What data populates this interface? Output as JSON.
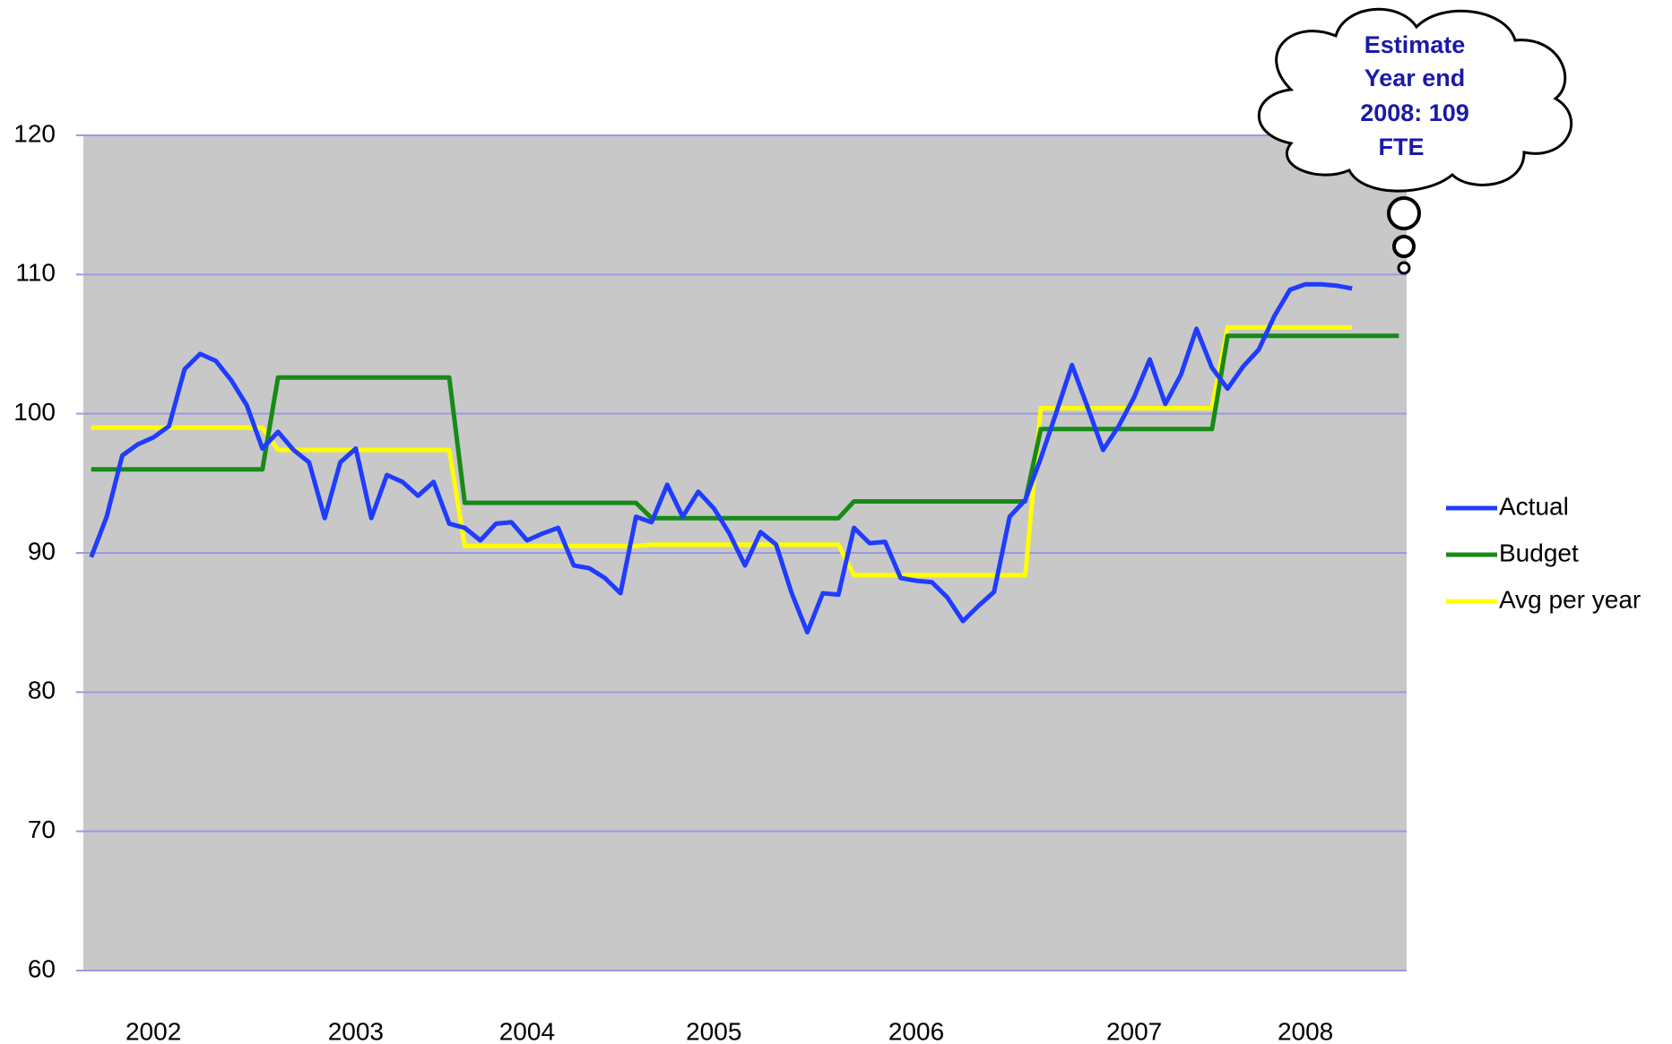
{
  "chart_data": {
    "type": "line",
    "categories": [
      null,
      null,
      null,
      null,
      "2002",
      null,
      null,
      null,
      null,
      null,
      null,
      null,
      null,
      null,
      null,
      null,
      null,
      "2003",
      null,
      null,
      null,
      null,
      null,
      null,
      null,
      null,
      null,
      null,
      "2004",
      null,
      null,
      null,
      null,
      null,
      null,
      null,
      null,
      null,
      null,
      null,
      "2005",
      null,
      null,
      null,
      null,
      null,
      null,
      null,
      null,
      null,
      null,
      null,
      null,
      "2006",
      null,
      null,
      null,
      null,
      null,
      null,
      null,
      null,
      null,
      null,
      null,
      null,
      null,
      "2007",
      null,
      null,
      null,
      null,
      null,
      null,
      null,
      null,
      null,
      null,
      "2008",
      null,
      null,
      null,
      null,
      null,
      null
    ],
    "series": [
      {
        "name": "Actual",
        "color": "#1f3cff",
        "values": [
          89.7,
          92.6,
          97,
          97.8,
          98.3,
          99.1,
          103.2,
          104.3,
          103.8,
          102.4,
          100.6,
          97.5,
          98.7,
          97.4,
          96.5,
          92.5,
          96.5,
          97.5,
          92.5,
          95.6,
          95.1,
          94.1,
          95.1,
          92.1,
          91.8,
          90.9,
          92.1,
          92.2,
          90.9,
          91.4,
          91.8,
          89.1,
          88.9,
          88.2,
          87.1,
          92.6,
          92.2,
          94.9,
          92.6,
          94.4,
          93.2,
          91.4,
          89.1,
          91.5,
          90.6,
          87.1,
          84.3,
          87.1,
          87,
          91.8,
          90.7,
          90.8,
          88.2,
          88,
          87.9,
          86.8,
          85.1,
          86.2,
          87.2,
          92.6,
          93.8,
          96.8,
          100.1,
          103.5,
          100.5,
          97.4,
          99.1,
          101.2,
          103.9,
          100.7,
          102.8,
          106.1,
          103.3,
          101.8,
          103.4,
          104.6,
          107,
          108.9,
          109.3,
          109.3,
          109.2,
          109,
          null,
          null,
          null
        ]
      },
      {
        "name": "Budget",
        "color": "#178a17",
        "values": [
          96,
          96,
          96,
          96,
          96,
          96,
          96,
          96,
          96,
          96,
          96,
          96,
          102.6,
          102.6,
          102.6,
          102.6,
          102.6,
          102.6,
          102.6,
          102.6,
          102.6,
          102.6,
          102.6,
          102.6,
          93.6,
          93.6,
          93.6,
          93.6,
          93.6,
          93.6,
          93.6,
          93.6,
          93.6,
          93.6,
          93.6,
          93.6,
          92.5,
          92.5,
          92.5,
          92.5,
          92.5,
          92.5,
          92.5,
          92.5,
          92.5,
          92.5,
          92.5,
          92.5,
          92.5,
          93.7,
          93.7,
          93.7,
          93.7,
          93.7,
          93.7,
          93.7,
          93.7,
          93.7,
          93.7,
          93.7,
          93.7,
          98.9,
          98.9,
          98.9,
          98.9,
          98.9,
          98.9,
          98.9,
          98.9,
          98.9,
          98.9,
          98.9,
          98.9,
          105.6,
          105.6,
          105.6,
          105.6,
          105.6,
          105.6,
          105.6,
          105.6,
          105.6,
          105.6,
          105.6,
          105.6
        ]
      },
      {
        "name": "Avg per year",
        "color": "#ffff00",
        "values": [
          99,
          99,
          99,
          99,
          99,
          99,
          99,
          99,
          99,
          99,
          99,
          99,
          97.4,
          97.4,
          97.4,
          97.4,
          97.4,
          97.4,
          97.4,
          97.4,
          97.4,
          97.4,
          97.4,
          97.4,
          90.5,
          90.5,
          90.5,
          90.5,
          90.5,
          90.5,
          90.5,
          90.5,
          90.5,
          90.5,
          90.5,
          90.5,
          90.6,
          90.6,
          90.6,
          90.6,
          90.6,
          90.6,
          90.6,
          90.6,
          90.6,
          90.6,
          90.6,
          90.6,
          90.6,
          88.4,
          88.4,
          88.4,
          88.4,
          88.4,
          88.4,
          88.4,
          88.4,
          88.4,
          88.4,
          88.4,
          88.4,
          100.4,
          100.4,
          100.4,
          100.4,
          100.4,
          100.4,
          100.4,
          100.4,
          100.4,
          100.4,
          100.4,
          100.4,
          106.2,
          106.2,
          106.2,
          106.2,
          106.2,
          106.2,
          106.2,
          106.2,
          106.2,
          null,
          null,
          null
        ]
      }
    ],
    "ylim": [
      60,
      120
    ],
    "yticks": [
      60,
      70,
      80,
      90,
      100,
      110,
      120
    ],
    "grid": true,
    "legend": "right",
    "annotation": [
      "Estimate",
      "Year end",
      "2008: 109",
      "FTE"
    ]
  }
}
